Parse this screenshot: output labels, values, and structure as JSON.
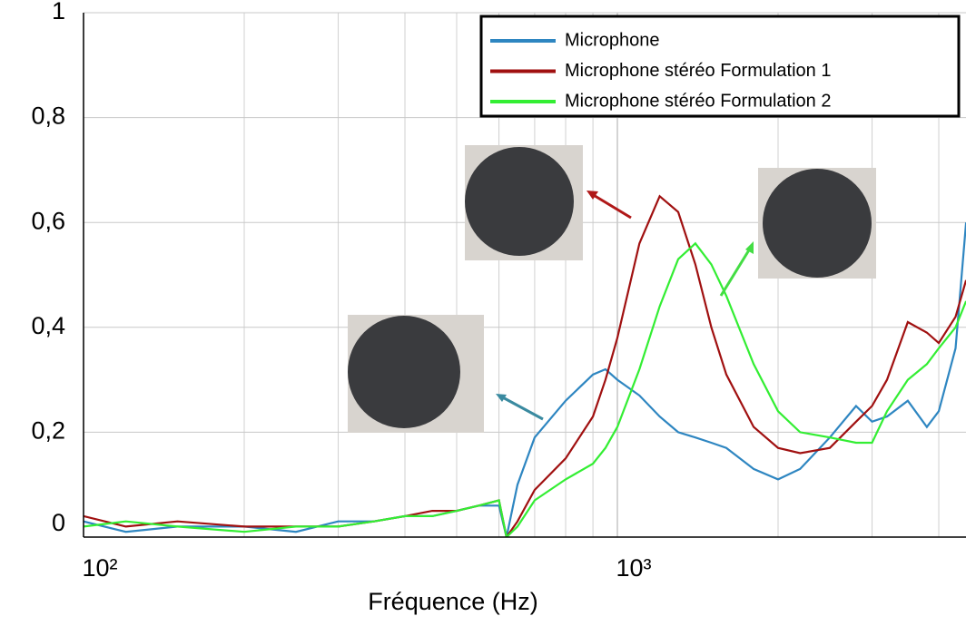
{
  "chart_data": {
    "type": "line",
    "x_label": "Fréquence (Hz)",
    "log_x": true,
    "grid": true,
    "xlim": [
      100,
      4500
    ],
    "ylim": [
      0,
      1
    ],
    "xticks": [
      {
        "value": 100,
        "label": "10²"
      },
      {
        "value": 1000,
        "label": "10³"
      }
    ],
    "yticks": [
      0,
      {
        "value": 0.2,
        "label": "0,2"
      },
      {
        "value": 0.4,
        "label": "0,4"
      },
      {
        "value": 0.6,
        "label": "0,6"
      },
      {
        "value": 0.8,
        "label": "0,8"
      },
      1
    ],
    "x": [
      100,
      120,
      150,
      200,
      250,
      300,
      350,
      400,
      450,
      500,
      550,
      600,
      620,
      650,
      700,
      800,
      900,
      950,
      1000,
      1100,
      1200,
      1300,
      1400,
      1500,
      1600,
      1800,
      2000,
      2200,
      2500,
      2800,
      3000,
      3200,
      3500,
      3800,
      4000,
      4300,
      4500
    ],
    "series": [
      {
        "name": "Microphone",
        "color": "#2e86c1",
        "values": [
          0.03,
          0.01,
          0.02,
          0.02,
          0.01,
          0.03,
          0.03,
          0.04,
          0.04,
          0.05,
          0.06,
          0.06,
          0.0,
          0.1,
          0.19,
          0.26,
          0.31,
          0.32,
          0.3,
          0.27,
          0.23,
          0.2,
          0.19,
          0.18,
          0.17,
          0.13,
          0.11,
          0.13,
          0.19,
          0.25,
          0.22,
          0.23,
          0.26,
          0.21,
          0.24,
          0.36,
          0.6
        ]
      },
      {
        "name": "Microphone stéréo Formulation 1",
        "color": "#a01010",
        "values": [
          0.04,
          0.02,
          0.03,
          0.02,
          0.02,
          0.02,
          0.03,
          0.04,
          0.05,
          0.05,
          0.06,
          0.07,
          0.0,
          0.03,
          0.09,
          0.15,
          0.23,
          0.3,
          0.38,
          0.56,
          0.65,
          0.62,
          0.52,
          0.4,
          0.31,
          0.21,
          0.17,
          0.16,
          0.17,
          0.22,
          0.25,
          0.3,
          0.41,
          0.39,
          0.37,
          0.42,
          0.49
        ]
      },
      {
        "name": "Microphone stéréo Formulation 2",
        "color": "#33ee33",
        "values": [
          0.02,
          0.03,
          0.02,
          0.01,
          0.02,
          0.02,
          0.03,
          0.04,
          0.04,
          0.05,
          0.06,
          0.07,
          0.0,
          0.02,
          0.07,
          0.11,
          0.14,
          0.17,
          0.21,
          0.32,
          0.44,
          0.53,
          0.56,
          0.52,
          0.46,
          0.33,
          0.24,
          0.2,
          0.19,
          0.18,
          0.18,
          0.24,
          0.3,
          0.33,
          0.36,
          0.4,
          0.45
        ]
      }
    ]
  }
}
